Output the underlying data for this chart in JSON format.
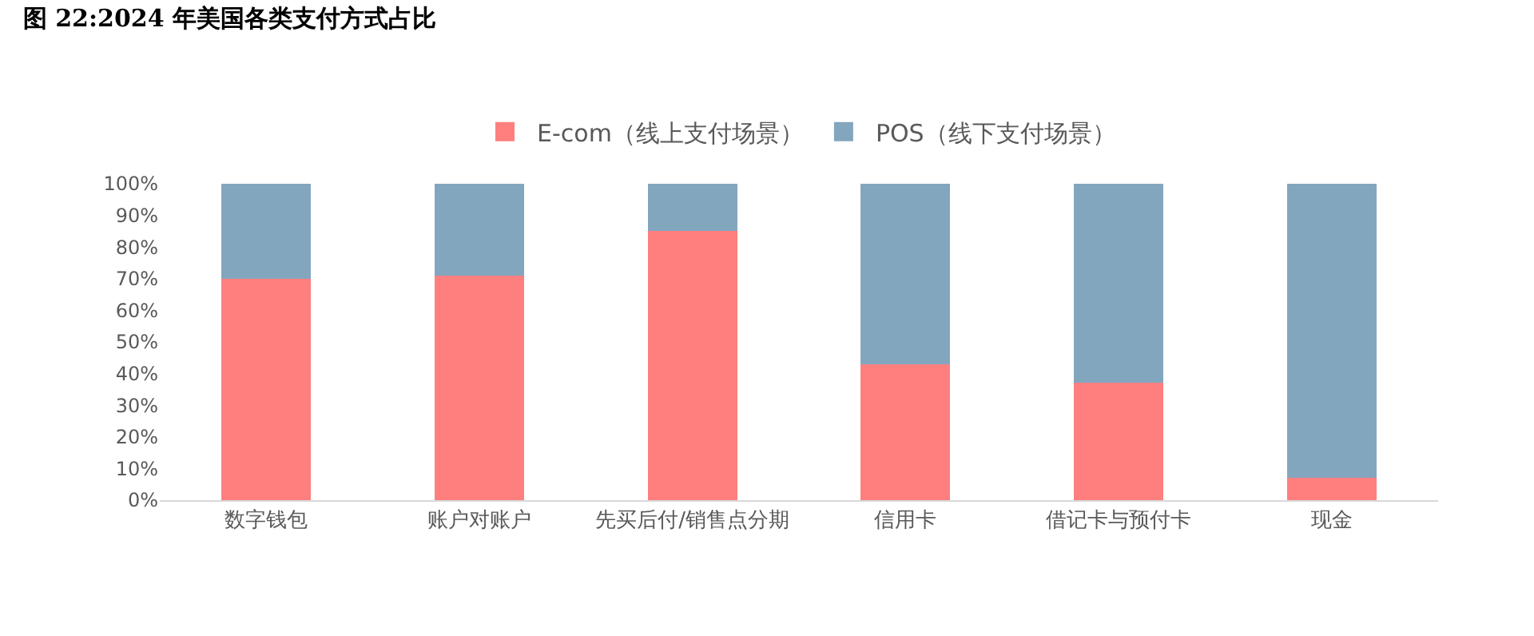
{
  "chart_data": {
    "type": "bar",
    "stacked": true,
    "title": "图 22:2024 年美国各类支付方式占比",
    "categories": [
      "数字钱包",
      "账户对账户",
      "先买后付/销售点分期",
      "信用卡",
      "借记卡与预付卡",
      "现金"
    ],
    "series": [
      {
        "name": "E-com（线上支付场景）",
        "color": "#ff7f7f",
        "values": [
          70,
          71,
          85,
          43,
          37,
          7
        ]
      },
      {
        "name": "POS（线下支付场景）",
        "color": "#83a6bf",
        "values": [
          30,
          29,
          15,
          57,
          63,
          93
        ]
      }
    ],
    "ylim": [
      0,
      100
    ],
    "yticks": [
      {
        "value": 0,
        "label": "0%"
      },
      {
        "value": 10,
        "label": "10%"
      },
      {
        "value": 20,
        "label": "20%"
      },
      {
        "value": 30,
        "label": "30%"
      },
      {
        "value": 40,
        "label": "40%"
      },
      {
        "value": 50,
        "label": "50%"
      },
      {
        "value": 60,
        "label": "60%"
      },
      {
        "value": 70,
        "label": "70%"
      },
      {
        "value": 80,
        "label": "80%"
      },
      {
        "value": 90,
        "label": "90%"
      },
      {
        "value": 100,
        "label": "100%"
      }
    ],
    "grid": false,
    "legend": "top"
  }
}
